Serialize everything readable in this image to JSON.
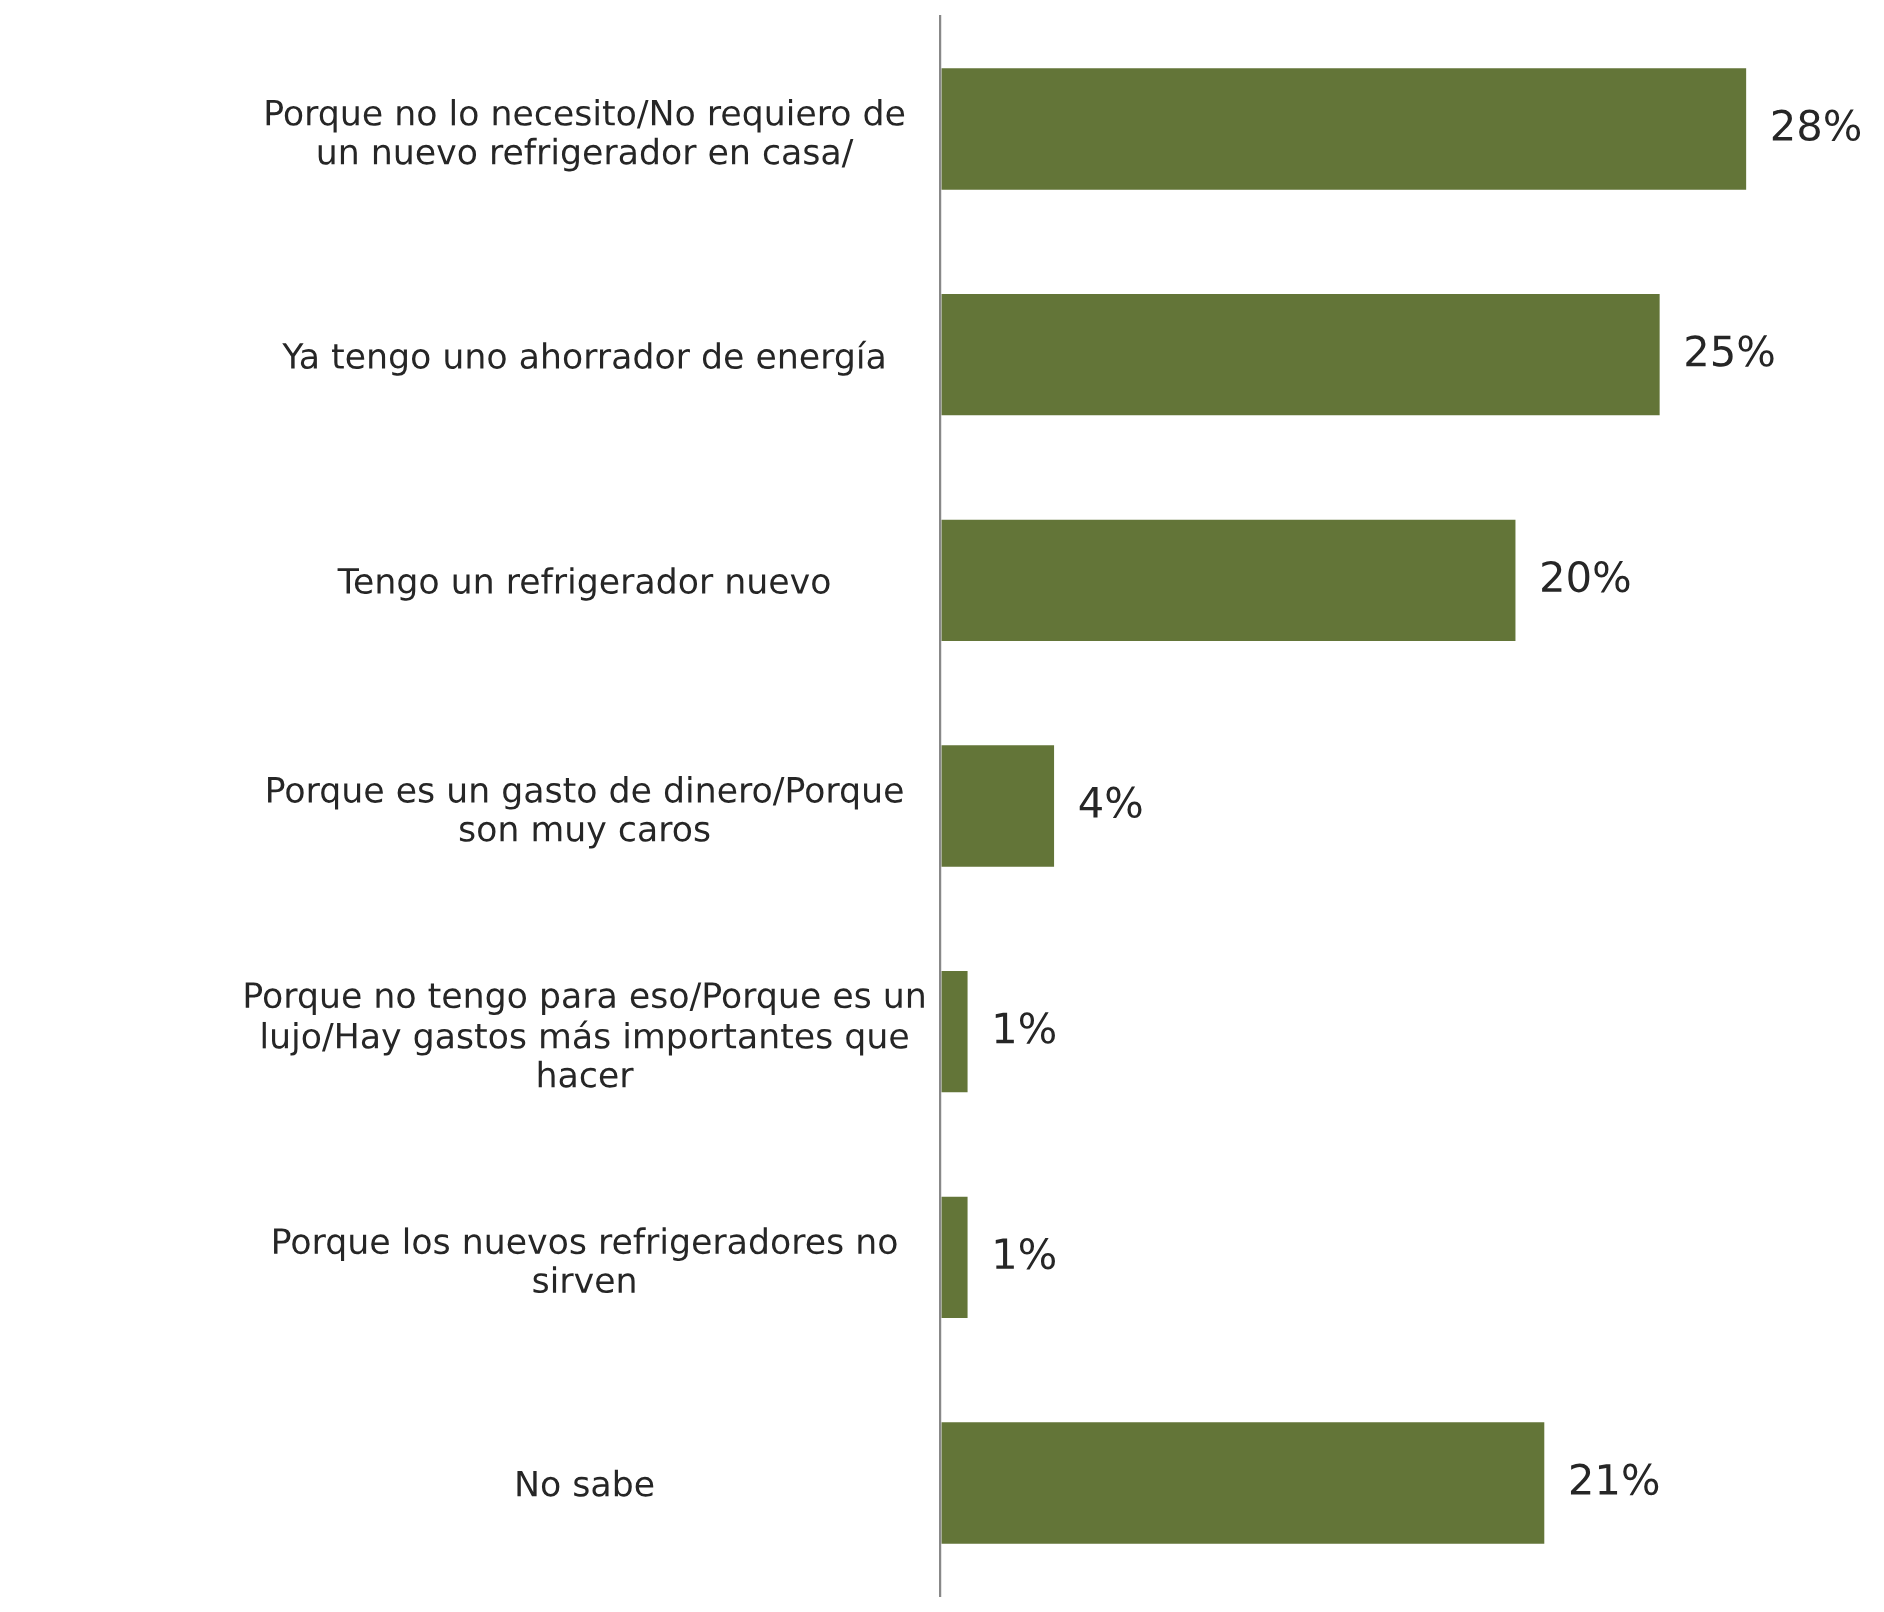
{
  "chart_data": {
    "type": "bar",
    "orientation": "horizontal",
    "categories": [
      "Porque no lo necesito/No requiero de\nun nuevo refrigerador en casa/",
      "Ya tengo uno ahorrador de energía",
      "Tengo un refrigerador nuevo",
      "Porque es un gasto de dinero/Porque\nson muy caros",
      "Porque no tengo para eso/Porque es un\nlujo/Hay gastos más importantes que\nhacer",
      "Porque los nuevos refrigeradores no\nsirven",
      "No sabe"
    ],
    "values": [
      28,
      25,
      20,
      4,
      1,
      1,
      21
    ],
    "value_labels": [
      "28%",
      "25%",
      "20%",
      "4%",
      "1%",
      "1%",
      "21%"
    ],
    "color": "#637538"
  }
}
